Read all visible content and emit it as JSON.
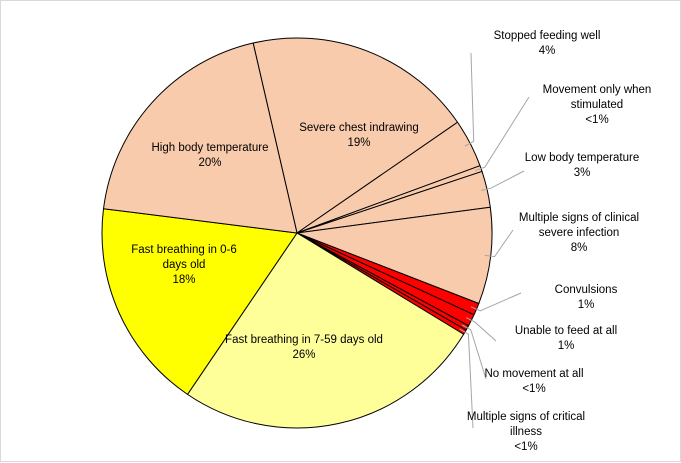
{
  "chart_data": {
    "type": "pie",
    "slices": [
      {
        "label_lines": [
          "Severe chest indrawing",
          "19%"
        ],
        "value": 19,
        "color": "#f8cbad"
      },
      {
        "label_lines": [
          "Stopped feeding well",
          "4%"
        ],
        "value": 4,
        "color": "#f8cbad"
      },
      {
        "label_lines": [
          "Movement only when",
          "stimulated",
          "<1%"
        ],
        "value": 0.5,
        "color": "#f8cbad"
      },
      {
        "label_lines": [
          "Low body temperature",
          "3%"
        ],
        "value": 3,
        "color": "#f8cbad"
      },
      {
        "label_lines": [
          "Multiple signs of clinical",
          "severe infection",
          "8%"
        ],
        "value": 8,
        "color": "#f8cbad"
      },
      {
        "label_lines": [
          "Convulsions",
          "1%"
        ],
        "value": 1,
        "color": "#ff0000"
      },
      {
        "label_lines": [
          "Unable to feed at all",
          "1%"
        ],
        "value": 1,
        "color": "#ff0000"
      },
      {
        "label_lines": [
          "No movement at all",
          "<1%"
        ],
        "value": 0.4,
        "color": "#ff0000"
      },
      {
        "label_lines": [
          "Multiple signs of critical",
          "illness",
          "<1%"
        ],
        "value": 0.4,
        "color": "#ff0000"
      },
      {
        "label_lines": [
          "Fast breathing in 7-59 days old",
          "26%"
        ],
        "value": 25.8,
        "color": "#ffff99"
      },
      {
        "label_lines": [
          "Fast breathing in 0-6",
          "days old",
          "18%"
        ],
        "value": 17.5,
        "color": "#ffff00"
      },
      {
        "label_lines": [
          "High body temperature",
          "20%"
        ],
        "value": 19.4,
        "color": "#f8cbad"
      }
    ]
  }
}
